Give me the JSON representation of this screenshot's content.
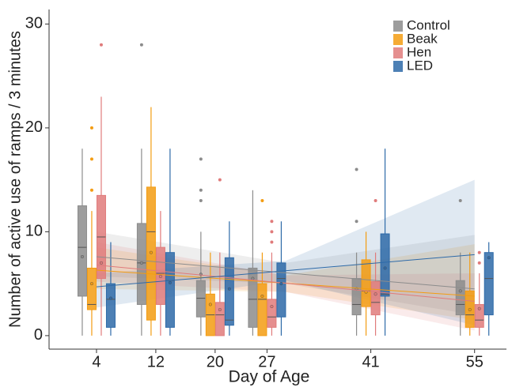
{
  "chart_data": {
    "type": "box",
    "x_label": "Day of Age",
    "y_label": "Number of active use of ramps / 3 minutes",
    "x": [
      4,
      12,
      20,
      27,
      41,
      55
    ],
    "xlim": [
      -2.4,
      59.3
    ],
    "xticks": [
      4,
      12,
      20,
      27,
      41,
      55
    ],
    "ylim": [
      -1.3,
      31.4
    ],
    "yticks": [
      0,
      10,
      20,
      30
    ],
    "legend_position": "top-right",
    "trend_x": [
      4,
      29.5,
      55
    ],
    "series": [
      {
        "name": "Control",
        "color": "#8c8c8c",
        "boxes": [
          {
            "min": 0,
            "q1": 3.8,
            "median": 8.5,
            "q3": 12.5,
            "max": 18,
            "mean": 7.6,
            "outliers": []
          },
          {
            "min": 0,
            "q1": 3,
            "median": 7,
            "q3": 10.8,
            "max": 18,
            "mean": 7,
            "outliers": [
              28
            ]
          },
          {
            "min": 0,
            "q1": 1.8,
            "median": 3.6,
            "q3": 5.3,
            "max": 10,
            "mean": 5.9,
            "outliers": [
              13,
              14,
              17
            ]
          },
          {
            "min": 0,
            "q1": 0.8,
            "median": 3.5,
            "q3": 6.5,
            "max": 14,
            "mean": 5.5,
            "outliers": []
          },
          {
            "min": 0,
            "q1": 2,
            "median": 3,
            "q3": 5.5,
            "max": 8,
            "mean": 4.5,
            "outliers": [
              11,
              16
            ]
          },
          {
            "min": 0,
            "q1": 2,
            "median": 3,
            "q3": 5.3,
            "max": 8,
            "mean": 4.3,
            "outliers": [
              13
            ]
          }
        ],
        "trend": [
          7.6,
          6.05,
          4.5
        ],
        "ci_low": [
          5.7,
          5,
          2
        ],
        "ci_high": [
          10,
          7,
          9.7
        ]
      },
      {
        "name": "Beak",
        "color": "#f39c12",
        "boxes": [
          {
            "min": 0,
            "q1": 2.5,
            "median": 3,
            "q3": 6.5,
            "max": 12,
            "mean": 5,
            "outliers": [
              14,
              17,
              20
            ]
          },
          {
            "min": 0,
            "q1": 1.5,
            "median": 10,
            "q3": 14.3,
            "max": 22,
            "mean": 8,
            "outliers": []
          },
          {
            "min": 0,
            "q1": 0,
            "median": 2,
            "q3": 4,
            "max": 8,
            "mean": 3,
            "outliers": []
          },
          {
            "min": 0,
            "q1": 0,
            "median": 3.5,
            "q3": 5,
            "max": 8,
            "mean": 3.8,
            "outliers": [
              13
            ]
          },
          {
            "min": 0,
            "q1": 2.8,
            "median": 4.3,
            "q3": 7.3,
            "max": 10,
            "mean": 4.2,
            "outliers": []
          },
          {
            "min": 0,
            "q1": 0.8,
            "median": 2,
            "q3": 4.3,
            "max": 8,
            "mean": 2.5,
            "outliers": []
          }
        ],
        "trend": [
          6.3,
          5.05,
          3.8
        ],
        "ci_low": [
          4.5,
          4.2,
          1.5
        ],
        "ci_high": [
          8.5,
          5.8,
          8.8
        ]
      },
      {
        "name": "Hen",
        "color": "#e07b7b",
        "boxes": [
          {
            "min": 0,
            "q1": 5.5,
            "median": 9.5,
            "q3": 13.5,
            "max": 23,
            "mean": 7,
            "outliers": [
              28
            ]
          },
          {
            "min": 0,
            "q1": 3,
            "median": 6,
            "q3": 8.5,
            "max": 12,
            "mean": 5.7,
            "outliers": []
          },
          {
            "min": 0,
            "q1": 0,
            "median": 2,
            "q3": 3.2,
            "max": 8,
            "mean": 2.5,
            "outliers": [
              15
            ]
          },
          {
            "min": 0,
            "q1": 0.8,
            "median": 1.8,
            "q3": 3.5,
            "max": 8,
            "mean": 2.8,
            "outliers": [
              9,
              10,
              11
            ]
          },
          {
            "min": 0,
            "q1": 2,
            "median": 3.2,
            "q3": 5.2,
            "max": 8,
            "mean": 4,
            "outliers": [
              13
            ]
          },
          {
            "min": 0,
            "q1": 0.8,
            "median": 1.5,
            "q3": 3,
            "max": 6,
            "mean": 2.6,
            "outliers": [
              7,
              8
            ]
          }
        ],
        "trend": [
          6.8,
          5.05,
          3.3
        ],
        "ci_low": [
          5.2,
          4.2,
          0.5
        ],
        "ci_high": [
          9,
          5.8,
          6
        ]
      },
      {
        "name": "LED",
        "color": "#2e6aa8",
        "boxes": [
          {
            "min": 0,
            "q1": 0.8,
            "median": 3.5,
            "q3": 5,
            "max": 9,
            "mean": 3.6,
            "outliers": []
          },
          {
            "min": 0,
            "q1": 0.8,
            "median": 5.3,
            "q3": 8,
            "max": 18,
            "mean": 5.1,
            "outliers": []
          },
          {
            "min": 0,
            "q1": 1,
            "median": 1.5,
            "q3": 7.5,
            "max": 11,
            "mean": 4.5,
            "outliers": []
          },
          {
            "min": 0,
            "q1": 1.8,
            "median": 5.5,
            "q3": 7,
            "max": 11,
            "mean": 5,
            "outliers": []
          },
          {
            "min": 0,
            "q1": 3.8,
            "median": 4,
            "q3": 9.8,
            "max": 18,
            "mean": 6.5,
            "outliers": []
          },
          {
            "min": 0,
            "q1": 2,
            "median": 5.5,
            "q3": 8,
            "max": 9,
            "mean": 7.5,
            "outliers": []
          }
        ],
        "trend": [
          4.7,
          6.25,
          7.8
        ],
        "ci_low": [
          2.7,
          5.3,
          1
        ],
        "ci_high": [
          6,
          7.2,
          15
        ]
      }
    ]
  }
}
